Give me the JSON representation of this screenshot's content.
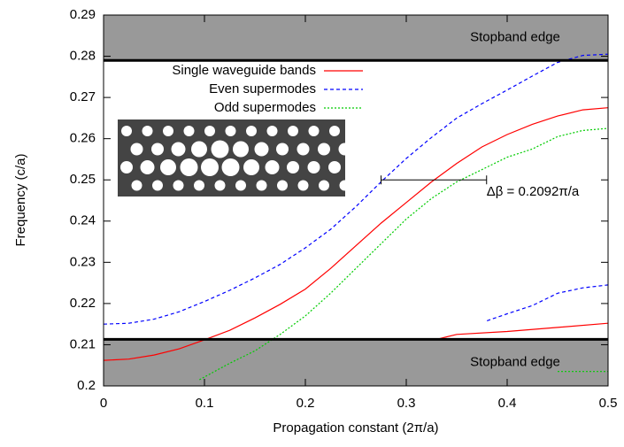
{
  "chart_data": {
    "type": "line",
    "xlabel": "Propagation constant (2π/a)",
    "ylabel": "Frequency (c/a)",
    "xlim": [
      0,
      0.5
    ],
    "ylim": [
      0.2,
      0.29
    ],
    "xticks": [
      0,
      0.1,
      0.2,
      0.3,
      0.4,
      0.5
    ],
    "yticks": [
      0.2,
      0.21,
      0.22,
      0.23,
      0.24,
      0.25,
      0.26,
      0.27,
      0.28,
      0.29
    ],
    "legend": "top-left",
    "stopbands": [
      {
        "label": "Stopband edge",
        "ylim": [
          0.279,
          0.29
        ]
      },
      {
        "label": "Stopband edge",
        "ylim": [
          0.2,
          0.2113
        ]
      }
    ],
    "annotation": {
      "text": "Δβ = 0.2092π/a",
      "x": [
        0.275,
        0.3796
      ],
      "y": 0.25
    },
    "series": [
      {
        "name": "Single waveguide bands",
        "color": "#ff0000",
        "dash": "none",
        "x": [
          0,
          0.025,
          0.05,
          0.075,
          0.1,
          0.125,
          0.15,
          0.175,
          0.2,
          0.225,
          0.25,
          0.275,
          0.3,
          0.325,
          0.35,
          0.375,
          0.4,
          0.425,
          0.45,
          0.475,
          0.5,
          null,
          0.33,
          0.35,
          0.4,
          0.45,
          0.5
        ],
        "values": [
          0.2062,
          0.2065,
          0.2075,
          0.209,
          0.2112,
          0.2135,
          0.2165,
          0.2198,
          0.2235,
          0.2285,
          0.234,
          0.2395,
          0.2445,
          0.2495,
          0.254,
          0.258,
          0.261,
          0.2635,
          0.2655,
          0.267,
          0.2675,
          null,
          0.2113,
          0.2125,
          0.2132,
          0.2142,
          0.2152
        ]
      },
      {
        "name": "Even supermodes",
        "color": "#0000ff",
        "dash": "4,3",
        "x": [
          0,
          0.025,
          0.05,
          0.075,
          0.1,
          0.125,
          0.15,
          0.175,
          0.2,
          0.225,
          0.25,
          0.275,
          0.3,
          0.325,
          0.35,
          0.375,
          0.4,
          0.425,
          0.45,
          0.475,
          0.5,
          null,
          0.38,
          0.4,
          0.425,
          0.45,
          0.475,
          0.5
        ],
        "values": [
          0.215,
          0.2152,
          0.2162,
          0.218,
          0.2205,
          0.2232,
          0.2262,
          0.2295,
          0.2335,
          0.238,
          0.2435,
          0.2495,
          0.2552,
          0.2603,
          0.265,
          0.2685,
          0.2718,
          0.2752,
          0.2785,
          0.2802,
          0.2805,
          null,
          0.2158,
          0.2175,
          0.2195,
          0.2225,
          0.2238,
          0.2245
        ]
      },
      {
        "name": "Odd supermodes",
        "color": "#00cc00",
        "dash": "2,2",
        "x": [
          0.095,
          0.125,
          0.15,
          0.175,
          0.2,
          0.225,
          0.25,
          0.275,
          0.3,
          0.325,
          0.35,
          0.375,
          0.4,
          0.425,
          0.45,
          0.475,
          0.5,
          null,
          0.45,
          0.5
        ],
        "values": [
          0.2015,
          0.2055,
          0.2085,
          0.2125,
          0.217,
          0.2225,
          0.2285,
          0.2345,
          0.2405,
          0.2455,
          0.2495,
          0.2525,
          0.2555,
          0.2575,
          0.2605,
          0.262,
          0.2625,
          null,
          0.2035,
          0.2035
        ]
      }
    ]
  }
}
